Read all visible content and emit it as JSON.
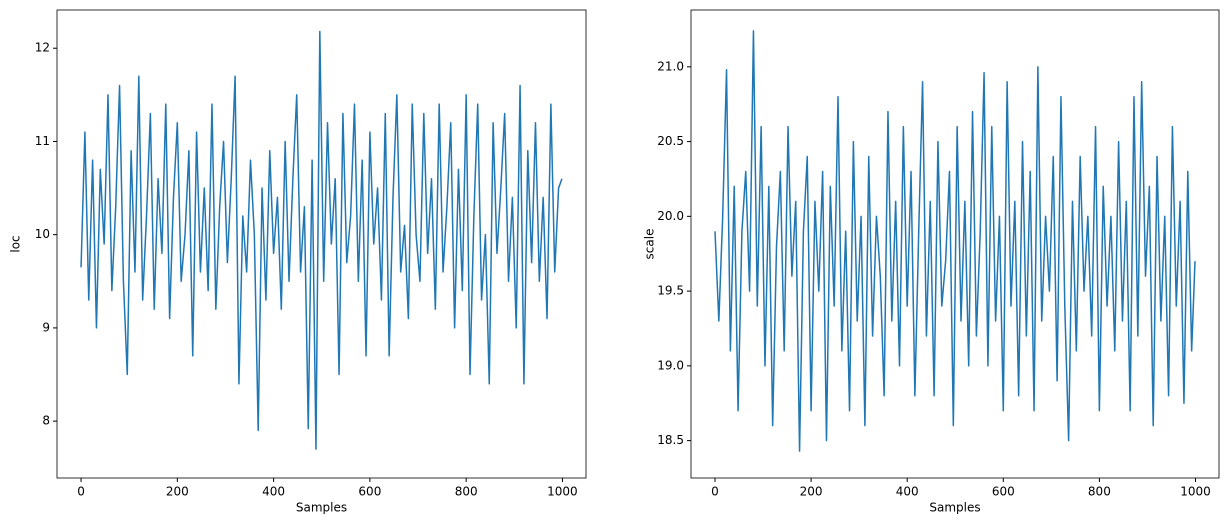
{
  "chart_data": [
    {
      "type": "line",
      "xlabel": "Samples",
      "ylabel": "loc",
      "color": "#1f77b4",
      "x": [
        0,
        8,
        16,
        24,
        32,
        40,
        48,
        56,
        64,
        72,
        80,
        88,
        96,
        104,
        112,
        120,
        128,
        136,
        144,
        152,
        160,
        168,
        176,
        184,
        192,
        200,
        208,
        216,
        224,
        232,
        240,
        248,
        256,
        264,
        272,
        280,
        288,
        296,
        304,
        312,
        320,
        328,
        336,
        344,
        352,
        360,
        368,
        376,
        384,
        392,
        400,
        408,
        416,
        424,
        432,
        440,
        448,
        456,
        464,
        472,
        480,
        488,
        496,
        504,
        512,
        520,
        528,
        536,
        544,
        552,
        560,
        568,
        576,
        584,
        592,
        600,
        608,
        616,
        624,
        632,
        640,
        648,
        656,
        664,
        672,
        680,
        688,
        696,
        704,
        712,
        720,
        728,
        736,
        744,
        752,
        760,
        768,
        776,
        784,
        792,
        800,
        808,
        816,
        824,
        832,
        840,
        848,
        856,
        864,
        872,
        880,
        888,
        896,
        904,
        912,
        920,
        928,
        936,
        944,
        952,
        960,
        968,
        976,
        984,
        992,
        999
      ],
      "values": [
        9.65,
        11.1,
        9.3,
        10.8,
        9.0,
        10.7,
        9.9,
        11.5,
        9.4,
        10.3,
        11.6,
        9.5,
        8.5,
        10.9,
        9.6,
        11.7,
        9.3,
        10.2,
        11.3,
        9.2,
        10.6,
        9.8,
        11.4,
        9.1,
        10.4,
        11.2,
        9.5,
        10.0,
        10.9,
        8.7,
        11.1,
        9.6,
        10.5,
        9.4,
        11.4,
        9.2,
        10.3,
        11.0,
        9.7,
        10.6,
        11.7,
        8.4,
        10.2,
        9.6,
        10.8,
        10.0,
        7.9,
        10.5,
        9.3,
        10.9,
        9.8,
        10.4,
        9.2,
        11.0,
        9.5,
        10.6,
        11.5,
        9.6,
        10.3,
        7.92,
        10.8,
        7.7,
        12.18,
        9.5,
        11.2,
        9.9,
        10.6,
        8.5,
        11.3,
        9.7,
        10.2,
        11.4,
        9.5,
        10.8,
        8.7,
        11.1,
        9.9,
        10.5,
        9.3,
        11.3,
        8.7,
        10.4,
        11.5,
        9.6,
        10.1,
        9.1,
        11.4,
        10.0,
        9.5,
        11.3,
        9.8,
        10.6,
        9.2,
        11.4,
        9.6,
        10.3,
        11.2,
        9.0,
        10.7,
        9.4,
        11.5,
        8.5,
        10.2,
        11.4,
        9.3,
        10.0,
        8.4,
        11.2,
        9.8,
        10.5,
        11.3,
        9.5,
        10.4,
        9.0,
        11.6,
        8.4,
        10.9,
        9.7,
        11.2,
        9.5,
        10.4,
        9.1,
        11.4,
        9.6,
        10.5,
        10.6
      ],
      "xlim": [
        -49.95,
        1048.95
      ],
      "xticks": [
        0,
        200,
        400,
        600,
        800,
        1000
      ],
      "ylim": [
        7.39,
        12.41
      ],
      "yticks": [
        8,
        9,
        10,
        11,
        12
      ]
    },
    {
      "type": "line",
      "xlabel": "Samples",
      "ylabel": "scale",
      "color": "#1f77b4",
      "x": [
        0,
        8,
        16,
        24,
        32,
        40,
        48,
        56,
        64,
        72,
        80,
        88,
        96,
        104,
        112,
        120,
        128,
        136,
        144,
        152,
        160,
        168,
        176,
        184,
        192,
        200,
        208,
        216,
        224,
        232,
        240,
        248,
        256,
        264,
        272,
        280,
        288,
        296,
        304,
        312,
        320,
        328,
        336,
        344,
        352,
        360,
        368,
        376,
        384,
        392,
        400,
        408,
        416,
        424,
        432,
        440,
        448,
        456,
        464,
        472,
        480,
        488,
        496,
        504,
        512,
        520,
        528,
        536,
        544,
        552,
        560,
        568,
        576,
        584,
        592,
        600,
        608,
        616,
        624,
        632,
        640,
        648,
        656,
        664,
        672,
        680,
        688,
        696,
        704,
        712,
        720,
        728,
        736,
        744,
        752,
        760,
        768,
        776,
        784,
        792,
        800,
        808,
        816,
        824,
        832,
        840,
        848,
        856,
        864,
        872,
        880,
        888,
        896,
        904,
        912,
        920,
        928,
        936,
        944,
        952,
        960,
        968,
        976,
        984,
        992,
        999
      ],
      "values": [
        19.9,
        19.3,
        20.0,
        20.98,
        19.1,
        20.2,
        18.7,
        19.9,
        20.3,
        19.5,
        21.24,
        19.4,
        20.6,
        19.0,
        20.2,
        18.6,
        19.8,
        20.3,
        19.1,
        20.6,
        19.6,
        20.1,
        18.43,
        19.9,
        20.4,
        18.7,
        20.1,
        19.5,
        20.3,
        18.5,
        20.2,
        19.4,
        20.8,
        19.1,
        19.9,
        18.7,
        20.5,
        19.3,
        20.0,
        18.6,
        20.4,
        19.2,
        20.0,
        19.6,
        18.8,
        20.7,
        19.3,
        20.1,
        19.0,
        20.6,
        19.4,
        20.3,
        18.8,
        19.9,
        20.9,
        19.2,
        20.1,
        18.8,
        20.5,
        19.4,
        19.7,
        20.3,
        18.6,
        20.6,
        19.3,
        20.1,
        19.0,
        20.7,
        19.2,
        19.9,
        20.96,
        19.0,
        20.6,
        19.3,
        20.0,
        18.7,
        20.9,
        19.4,
        20.1,
        18.8,
        20.5,
        19.2,
        20.3,
        18.7,
        21.0,
        19.3,
        20.0,
        19.5,
        20.4,
        18.9,
        20.8,
        19.4,
        18.5,
        20.1,
        19.1,
        20.4,
        19.5,
        20.0,
        19.2,
        20.6,
        18.7,
        20.2,
        19.4,
        20.0,
        19.1,
        20.5,
        19.3,
        20.1,
        18.7,
        20.8,
        19.2,
        20.9,
        19.6,
        20.2,
        18.6,
        20.4,
        19.3,
        20.0,
        18.8,
        20.6,
        19.4,
        20.1,
        18.75,
        20.3,
        19.1,
        19.7
      ],
      "xlim": [
        -49.95,
        1048.95
      ],
      "xticks": [
        0,
        200,
        400,
        600,
        800,
        1000
      ],
      "ylim": [
        18.25,
        21.38
      ],
      "yticks": [
        18.5,
        {
          "value": 19.0,
          "label": "19.0"
        },
        19.5,
        {
          "value": 20.0,
          "label": "20.0"
        },
        20.5,
        {
          "value": 21.0,
          "label": "21.0"
        }
      ]
    }
  ]
}
